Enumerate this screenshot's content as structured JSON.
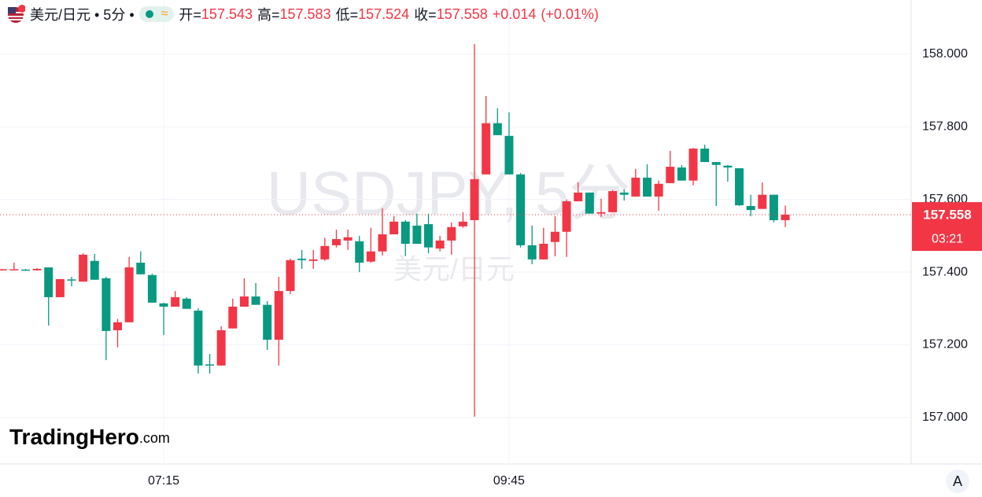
{
  "chart_data": {
    "type": "candlestick",
    "header": {
      "title": "美元/日元 • 5分 •",
      "badge": "≈",
      "ohlc_labels": [
        "开=",
        "高=",
        "低=",
        "收="
      ],
      "change": "+0.014",
      "change_pct": "(+0.01%)"
    },
    "watermark": {
      "symbol": "USDJPY, 5分",
      "name": "美元/日元"
    },
    "logo": {
      "brand": "TradingHero",
      "domain": ".com"
    },
    "countdown": "03:21",
    "corner_button": "A",
    "up_color": "#f23645",
    "down_color": "#089981",
    "categories": [
      null,
      null,
      null,
      null,
      null,
      null,
      null,
      null,
      null,
      null,
      null,
      null,
      null,
      null,
      "07:15",
      null,
      null,
      null,
      null,
      null,
      null,
      null,
      null,
      null,
      null,
      null,
      null,
      null,
      null,
      null,
      null,
      null,
      null,
      null,
      null,
      null,
      null,
      null,
      null,
      null,
      null,
      null,
      null,
      null,
      "09:45",
      null,
      null,
      null,
      null,
      null,
      null,
      null,
      null,
      null,
      null,
      null,
      null,
      null,
      null,
      null,
      null,
      null,
      null,
      null,
      null,
      null,
      null,
      null,
      null
    ],
    "open": [
      157.407,
      157.407,
      157.407,
      157.405,
      157.413,
      157.331,
      157.38,
      157.374,
      157.431,
      157.383,
      157.24,
      157.262,
      157.426,
      157.392,
      157.314,
      157.305,
      157.327,
      157.294,
      157.146,
      157.143,
      157.245,
      157.305,
      157.333,
      157.31,
      157.214,
      157.348,
      157.437,
      157.431,
      157.435,
      157.474,
      157.487,
      157.485,
      157.429,
      157.457,
      157.504,
      157.539,
      157.528,
      157.532,
      157.465,
      157.487,
      157.526,
      157.543,
      157.669,
      157.81,
      157.775,
      157.669,
      157.474,
      157.435,
      157.483,
      157.511,
      157.595,
      157.619,
      157.561,
      157.565,
      157.619,
      157.608,
      157.66,
      157.608,
      157.645,
      157.688,
      157.652,
      157.74,
      157.703,
      157.693,
      157.686,
      157.582,
      157.574,
      157.613,
      157.543
    ],
    "high": [
      157.409,
      157.426,
      157.409,
      157.411,
      157.413,
      157.381,
      157.387,
      157.452,
      157.45,
      157.387,
      157.271,
      157.442,
      157.457,
      157.396,
      157.316,
      157.348,
      157.331,
      157.301,
      157.175,
      157.251,
      157.327,
      157.383,
      157.37,
      157.32,
      157.387,
      157.437,
      157.461,
      157.461,
      157.494,
      157.517,
      157.517,
      157.5,
      157.522,
      157.576,
      157.554,
      157.543,
      157.561,
      157.561,
      157.5,
      157.537,
      157.565,
      158.028,
      157.885,
      157.851,
      157.84,
      157.673,
      157.528,
      157.522,
      157.554,
      157.6,
      157.647,
      157.619,
      157.602,
      157.626,
      157.628,
      157.684,
      157.697,
      157.652,
      157.734,
      157.695,
      157.742,
      157.751,
      157.703,
      157.695,
      157.686,
      157.613,
      157.647,
      157.613,
      157.583
    ],
    "low": [
      157.406,
      157.407,
      157.405,
      157.404,
      157.253,
      157.331,
      157.361,
      157.374,
      157.379,
      157.158,
      157.193,
      157.262,
      157.394,
      157.316,
      157.227,
      157.305,
      157.299,
      157.121,
      157.121,
      157.143,
      157.245,
      157.305,
      157.31,
      157.186,
      157.143,
      157.34,
      157.409,
      157.409,
      157.431,
      157.468,
      157.461,
      157.4,
      157.426,
      157.446,
      157.504,
      157.444,
      157.478,
      157.452,
      157.457,
      157.448,
      157.522,
      157.002,
      157.669,
      157.777,
      157.669,
      157.468,
      157.422,
      157.435,
      157.444,
      157.442,
      157.595,
      157.561,
      157.552,
      157.565,
      157.597,
      157.608,
      157.608,
      157.569,
      157.645,
      157.652,
      157.639,
      157.703,
      157.582,
      157.649,
      157.582,
      157.554,
      157.574,
      157.537,
      157.524
    ],
    "close": [
      157.408,
      157.408,
      157.406,
      157.409,
      157.331,
      157.381,
      157.379,
      157.448,
      157.379,
      157.238,
      157.262,
      157.413,
      157.394,
      157.316,
      157.305,
      157.331,
      157.299,
      157.143,
      157.145,
      157.24,
      157.305,
      157.333,
      157.31,
      157.214,
      157.348,
      157.433,
      157.433,
      157.435,
      157.472,
      157.491,
      157.496,
      157.426,
      157.457,
      157.504,
      157.539,
      157.478,
      157.478,
      157.468,
      157.487,
      157.524,
      157.539,
      157.656,
      157.81,
      157.777,
      157.669,
      157.474,
      157.435,
      157.478,
      157.511,
      157.595,
      157.619,
      157.561,
      157.565,
      157.623,
      157.613,
      157.66,
      157.608,
      157.643,
      157.69,
      157.652,
      157.74,
      157.703,
      157.695,
      157.688,
      157.584,
      157.571,
      157.613,
      157.543,
      157.558
    ],
    "ylim": [
      156.872,
      158.149
    ],
    "yticks": [
      {
        "value": 157,
        "label": "157.000"
      },
      {
        "value": 157.2,
        "label": "157.200"
      },
      {
        "value": 157.4,
        "label": "157.400"
      },
      {
        "value": 157.6,
        "label": "157.600"
      },
      {
        "value": 157.8,
        "label": "157.800"
      },
      {
        "value": 158,
        "label": "158.000"
      }
    ],
    "grid": true
  }
}
